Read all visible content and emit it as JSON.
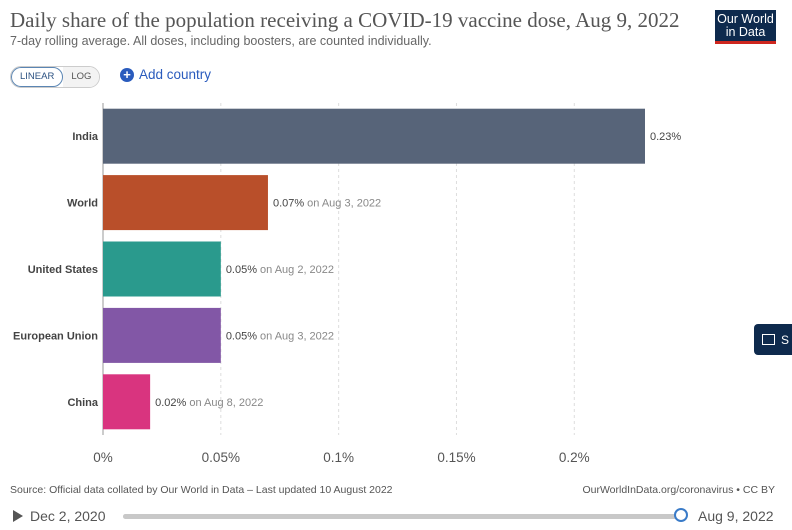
{
  "header": {
    "title": "Daily share of the population receiving a COVID-19 vaccine dose, Aug 9, 2022",
    "subtitle": "7-day rolling average. All doses, including boosters, are counted individually.",
    "logo_line1": "Our World",
    "logo_line2": "in Data"
  },
  "controls": {
    "linear_label": "LINEAR",
    "log_label": "LOG",
    "add_country_label": "Add country"
  },
  "chart_data": {
    "type": "bar",
    "orientation": "horizontal",
    "categories": [
      "India",
      "World",
      "United States",
      "European Union",
      "China"
    ],
    "values": [
      0.23,
      0.07,
      0.05,
      0.05,
      0.02
    ],
    "value_labels": [
      "0.23%",
      "0.07%",
      "0.05%",
      "0.05%",
      "0.02%"
    ],
    "date_notes": [
      "",
      "on Aug 3, 2022",
      "on Aug 2, 2022",
      "on Aug 3, 2022",
      "on Aug 8, 2022"
    ],
    "colors": [
      "#576479",
      "#b94f2a",
      "#2a9a8d",
      "#8257a6",
      "#d9347f"
    ],
    "xlim": [
      0,
      0.23
    ],
    "xticks": [
      0,
      0.05,
      0.1,
      0.15,
      0.2
    ],
    "xtick_labels": [
      "0%",
      "0.05%",
      "0.1%",
      "0.15%",
      "0.2%"
    ],
    "grid": true
  },
  "footer": {
    "source": "Source: Official data collated by Our World in Data – Last updated 10 August 2022",
    "credit": "OurWorldInData.org/coronavirus • CC BY"
  },
  "timeline": {
    "start_date": "Dec 2, 2020",
    "end_date": "Aug 9, 2022",
    "progress": 1.0
  },
  "side_tab": {
    "label": "S"
  }
}
